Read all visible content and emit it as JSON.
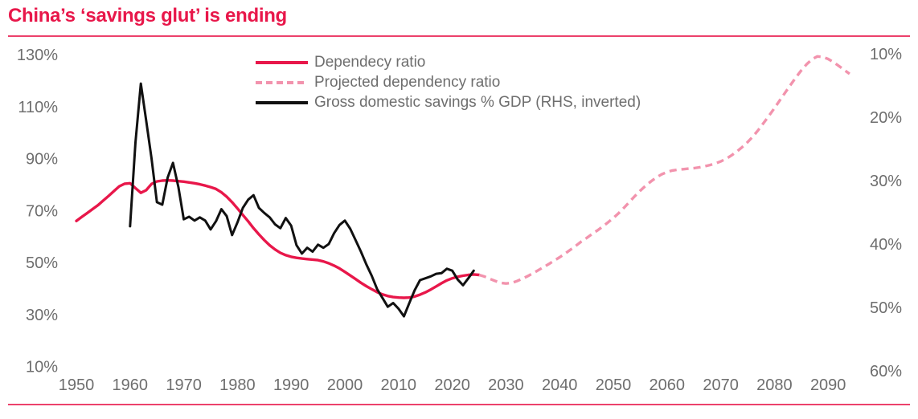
{
  "title": "China’s ‘savings glut’ is ending",
  "colors": {
    "accent_red": "#e8174a",
    "projected_pink": "#f293ad",
    "savings_black": "#111111",
    "text_gray": "#6e6e6e",
    "rule_red": "rgba(232,23,74,0.82)"
  },
  "legend": {
    "items": [
      {
        "label": "Dependecy ratio",
        "style": "solid-red"
      },
      {
        "label": "Projected dependency ratio",
        "style": "dashed-pink"
      },
      {
        "label": "Gross domestic savings % GDP (RHS, inverted)",
        "style": "solid-black"
      }
    ]
  },
  "chart_data": {
    "type": "line",
    "title": "China’s ‘savings glut’ is ending",
    "grid": false,
    "legend_position": "top-center",
    "left_axis": {
      "unit": "%",
      "ticks": [
        130,
        110,
        90,
        70,
        50,
        30,
        10
      ],
      "range": [
        10,
        130
      ]
    },
    "right_axis": {
      "unit": "%",
      "ticks": [
        10,
        20,
        30,
        40,
        50,
        60
      ],
      "range": [
        10,
        60
      ],
      "inverted": true
    },
    "x_axis": {
      "ticks": [
        1950,
        1960,
        1970,
        1980,
        1990,
        2000,
        2010,
        2020,
        2030,
        2040,
        2050,
        2060,
        2070,
        2080,
        2090
      ],
      "range": [
        1948,
        2096
      ]
    },
    "series": [
      {
        "name": "Dependecy ratio",
        "axis": "left",
        "style": "solid",
        "color_key": "accent_red",
        "points": [
          [
            1950,
            66
          ],
          [
            1951,
            67.5
          ],
          [
            1952,
            69
          ],
          [
            1953,
            70.5
          ],
          [
            1954,
            72
          ],
          [
            1955,
            73.8
          ],
          [
            1956,
            75.6
          ],
          [
            1957,
            77.5
          ],
          [
            1958,
            79.3
          ],
          [
            1959,
            80.3
          ],
          [
            1960,
            80.5
          ],
          [
            1961,
            78.6
          ],
          [
            1962,
            76.8
          ],
          [
            1963,
            77.8
          ],
          [
            1964,
            80.2
          ],
          [
            1965,
            81.2
          ],
          [
            1966,
            81.5
          ],
          [
            1967,
            81.6
          ],
          [
            1968,
            81.5
          ],
          [
            1969,
            81.3
          ],
          [
            1970,
            81.1
          ],
          [
            1971,
            80.8
          ],
          [
            1972,
            80.5
          ],
          [
            1973,
            80.1
          ],
          [
            1974,
            79.6
          ],
          [
            1975,
            79
          ],
          [
            1976,
            78.3
          ],
          [
            1977,
            77
          ],
          [
            1978,
            75.3
          ],
          [
            1979,
            73.2
          ],
          [
            1980,
            70.8
          ],
          [
            1981,
            68.3
          ],
          [
            1982,
            65.8
          ],
          [
            1983,
            63.2
          ],
          [
            1984,
            60.8
          ],
          [
            1985,
            58.6
          ],
          [
            1986,
            56.6
          ],
          [
            1987,
            55
          ],
          [
            1988,
            53.7
          ],
          [
            1989,
            52.8
          ],
          [
            1990,
            52.2
          ],
          [
            1991,
            51.8
          ],
          [
            1992,
            51.5
          ],
          [
            1993,
            51.3
          ],
          [
            1994,
            51.1
          ],
          [
            1995,
            50.9
          ],
          [
            1996,
            50.4
          ],
          [
            1997,
            49.7
          ],
          [
            1998,
            48.8
          ],
          [
            1999,
            47.7
          ],
          [
            2000,
            46.4
          ],
          [
            2001,
            45
          ],
          [
            2002,
            43.6
          ],
          [
            2003,
            42.2
          ],
          [
            2004,
            40.9
          ],
          [
            2005,
            39.7
          ],
          [
            2006,
            38.6
          ],
          [
            2007,
            37.7
          ],
          [
            2008,
            37.1
          ],
          [
            2009,
            36.7
          ],
          [
            2010,
            36.5
          ],
          [
            2011,
            36.4
          ],
          [
            2012,
            36.5
          ],
          [
            2013,
            36.9
          ],
          [
            2014,
            37.6
          ],
          [
            2015,
            38.5
          ],
          [
            2016,
            39.6
          ],
          [
            2017,
            40.8
          ],
          [
            2018,
            42
          ],
          [
            2019,
            43.1
          ],
          [
            2020,
            43.9
          ],
          [
            2021,
            44.5
          ],
          [
            2022,
            44.9
          ],
          [
            2023,
            45.2
          ],
          [
            2024,
            45.4
          ],
          [
            2025,
            45.2
          ]
        ]
      },
      {
        "name": "Projected dependency ratio",
        "axis": "left",
        "style": "dashed",
        "color_key": "projected_pink",
        "points": [
          [
            2025,
            45.2
          ],
          [
            2026,
            44.6
          ],
          [
            2027,
            43.7
          ],
          [
            2028,
            42.9
          ],
          [
            2029,
            42.2
          ],
          [
            2030,
            41.9
          ],
          [
            2031,
            42.1
          ],
          [
            2032,
            42.8
          ],
          [
            2033,
            43.7
          ],
          [
            2034,
            44.7
          ],
          [
            2035,
            45.8
          ],
          [
            2036,
            47
          ],
          [
            2037,
            48.2
          ],
          [
            2038,
            49.4
          ],
          [
            2039,
            50.7
          ],
          [
            2040,
            52
          ],
          [
            2041,
            53.4
          ],
          [
            2042,
            54.9
          ],
          [
            2043,
            56.4
          ],
          [
            2044,
            58
          ],
          [
            2045,
            59.4
          ],
          [
            2046,
            60.9
          ],
          [
            2047,
            62.3
          ],
          [
            2048,
            63.8
          ],
          [
            2049,
            65.4
          ],
          [
            2050,
            67.1
          ],
          [
            2051,
            69
          ],
          [
            2052,
            71.1
          ],
          [
            2053,
            73.3
          ],
          [
            2054,
            75.5
          ],
          [
            2055,
            77.6
          ],
          [
            2056,
            79.5
          ],
          [
            2057,
            81.2
          ],
          [
            2058,
            82.7
          ],
          [
            2059,
            83.9
          ],
          [
            2060,
            84.8
          ],
          [
            2061,
            85.4
          ],
          [
            2062,
            85.7
          ],
          [
            2063,
            85.9
          ],
          [
            2064,
            86.1
          ],
          [
            2065,
            86.3
          ],
          [
            2066,
            86.6
          ],
          [
            2067,
            87
          ],
          [
            2068,
            87.5
          ],
          [
            2069,
            88.1
          ],
          [
            2070,
            88.9
          ],
          [
            2071,
            89.9
          ],
          [
            2072,
            91.2
          ],
          [
            2073,
            92.7
          ],
          [
            2074,
            94.4
          ],
          [
            2075,
            96.3
          ],
          [
            2076,
            98.5
          ],
          [
            2077,
            101
          ],
          [
            2078,
            103.7
          ],
          [
            2079,
            106.5
          ],
          [
            2080,
            109.4
          ],
          [
            2081,
            112.4
          ],
          [
            2082,
            115.4
          ],
          [
            2083,
            118.3
          ],
          [
            2084,
            121.2
          ],
          [
            2085,
            123.9
          ],
          [
            2086,
            126.3
          ],
          [
            2087,
            128.2
          ],
          [
            2088,
            129.3
          ],
          [
            2089,
            129.1
          ],
          [
            2090,
            128.3
          ],
          [
            2091,
            127.1
          ],
          [
            2092,
            125.6
          ],
          [
            2093,
            124.1
          ],
          [
            2094,
            122.6
          ]
        ]
      },
      {
        "name": "Gross domestic savings % GDP (RHS, inverted)",
        "axis": "right",
        "style": "solid",
        "color_key": "savings_black",
        "points": [
          [
            1960,
            37.2
          ],
          [
            1961,
            24
          ],
          [
            1962,
            14.7
          ],
          [
            1963,
            20.5
          ],
          [
            1964,
            26.5
          ],
          [
            1965,
            33.4
          ],
          [
            1966,
            33.8
          ],
          [
            1967,
            29.5
          ],
          [
            1968,
            27.2
          ],
          [
            1969,
            31
          ],
          [
            1970,
            36.1
          ],
          [
            1971,
            35.7
          ],
          [
            1972,
            36.3
          ],
          [
            1973,
            35.8
          ],
          [
            1974,
            36.3
          ],
          [
            1975,
            37.7
          ],
          [
            1976,
            36.4
          ],
          [
            1977,
            34.5
          ],
          [
            1978,
            35.6
          ],
          [
            1979,
            38.6
          ],
          [
            1980,
            36.6
          ],
          [
            1981,
            34.3
          ],
          [
            1982,
            33
          ],
          [
            1983,
            32.3
          ],
          [
            1984,
            34.3
          ],
          [
            1985,
            35.1
          ],
          [
            1986,
            35.8
          ],
          [
            1987,
            36.9
          ],
          [
            1988,
            37.5
          ],
          [
            1989,
            35.9
          ],
          [
            1990,
            37.1
          ],
          [
            1991,
            40.2
          ],
          [
            1992,
            41.5
          ],
          [
            1993,
            40.6
          ],
          [
            1994,
            41.2
          ],
          [
            1995,
            40.1
          ],
          [
            1996,
            40.6
          ],
          [
            1997,
            40
          ],
          [
            1998,
            38.3
          ],
          [
            1999,
            37
          ],
          [
            2000,
            36.3
          ],
          [
            2001,
            37.6
          ],
          [
            2002,
            39.4
          ],
          [
            2003,
            41.2
          ],
          [
            2004,
            43.2
          ],
          [
            2005,
            45
          ],
          [
            2006,
            47.1
          ],
          [
            2007,
            48.5
          ],
          [
            2008,
            49.9
          ],
          [
            2009,
            49.3
          ],
          [
            2010,
            50.2
          ],
          [
            2011,
            51.4
          ],
          [
            2012,
            49.3
          ],
          [
            2013,
            47.3
          ],
          [
            2014,
            45.7
          ],
          [
            2015,
            45.4
          ],
          [
            2016,
            45.1
          ],
          [
            2017,
            44.7
          ],
          [
            2018,
            44.6
          ],
          [
            2019,
            43.9
          ],
          [
            2020,
            44.2
          ],
          [
            2021,
            45.6
          ],
          [
            2022,
            46.5
          ],
          [
            2023,
            45.4
          ],
          [
            2024,
            44.2
          ]
        ]
      }
    ]
  }
}
